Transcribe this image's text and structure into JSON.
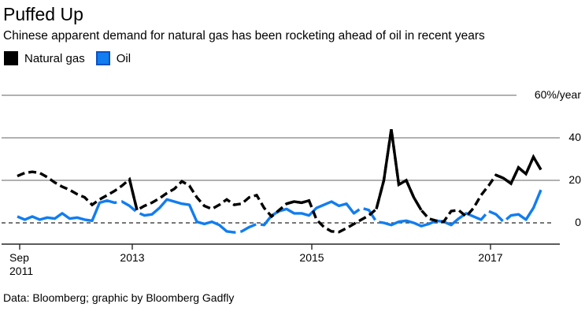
{
  "header": {
    "title": "Puffed Up",
    "subtitle": "Chinese apparent demand for natural gas has been rocketing ahead of oil in recent years"
  },
  "footer": {
    "source_note": "Data: Bloomberg; graphic by Bloomberg Gadfly"
  },
  "chart_data": {
    "type": "line",
    "title": "Puffed Up",
    "subtitle": "Chinese apparent demand for natural gas has been rocketing ahead of oil in recent years",
    "x_unit": "month",
    "x_start": "Sep 2011",
    "x_end": "Jul 2017",
    "freq": "monthly",
    "ylim": [
      -10,
      60
    ],
    "grid": "horizontal",
    "legend_position": "top-left",
    "y_axis": {
      "ticks": [
        {
          "value": 60,
          "label": "60%/year"
        },
        {
          "value": 40,
          "label": "40"
        },
        {
          "value": 20,
          "label": "20"
        },
        {
          "value": 0,
          "label": "0"
        }
      ],
      "zero_line_style": "dashed"
    },
    "x_axis": {
      "ticks": [
        {
          "label": "Sep\n2011"
        },
        {
          "label": "2013"
        },
        {
          "label": "2015"
        },
        {
          "label": "2017"
        }
      ]
    },
    "series": [
      {
        "name": "Natural gas",
        "color": "#000000",
        "style": "dashed",
        "values": [
          22,
          23.5,
          24,
          23.5,
          21.5,
          19,
          17,
          15.5,
          13.5,
          12,
          8.5,
          11,
          13,
          15,
          17.5,
          20.5,
          6,
          8,
          9.5,
          11.5,
          14,
          16,
          19.5,
          17.5,
          12,
          8,
          6.5,
          8.5,
          11,
          8.5,
          9,
          12,
          13,
          7,
          3,
          6,
          9,
          10,
          9.5,
          10.5,
          1.5,
          -2,
          -4,
          -4.3,
          -2.5,
          -0.5,
          1.5,
          3.5,
          6.5,
          20,
          44,
          18,
          20,
          12,
          6,
          2,
          1,
          0.5,
          5.5,
          6,
          3,
          7,
          13,
          17.5,
          22.5,
          21,
          18.5,
          26,
          23,
          31,
          25
        ]
      },
      {
        "name": "Oil",
        "color": "#117df0",
        "swatch_border": "#0b51c5",
        "style": "solid",
        "values": [
          3,
          1.5,
          3,
          1.5,
          2.5,
          2,
          4.5,
          2,
          2.5,
          1.5,
          1,
          9.5,
          10.5,
          9.5,
          10,
          8,
          5,
          3.5,
          4,
          7,
          11,
          10,
          9,
          8.5,
          0.5,
          -0.5,
          0.5,
          -1,
          -4,
          -4.5,
          -4,
          -2,
          -0.5,
          -1,
          3.5,
          5.5,
          6.5,
          4.5,
          4.5,
          3.5,
          7,
          8.5,
          10,
          8,
          9,
          4.5,
          7,
          6,
          0.5,
          0,
          -1,
          0.5,
          1,
          0,
          -1.5,
          -0.5,
          1,
          0.5,
          -1,
          2,
          4.5,
          3,
          1.5,
          5.5,
          4,
          0.5,
          3.5,
          4,
          1.5,
          7,
          15.5
        ]
      }
    ]
  }
}
